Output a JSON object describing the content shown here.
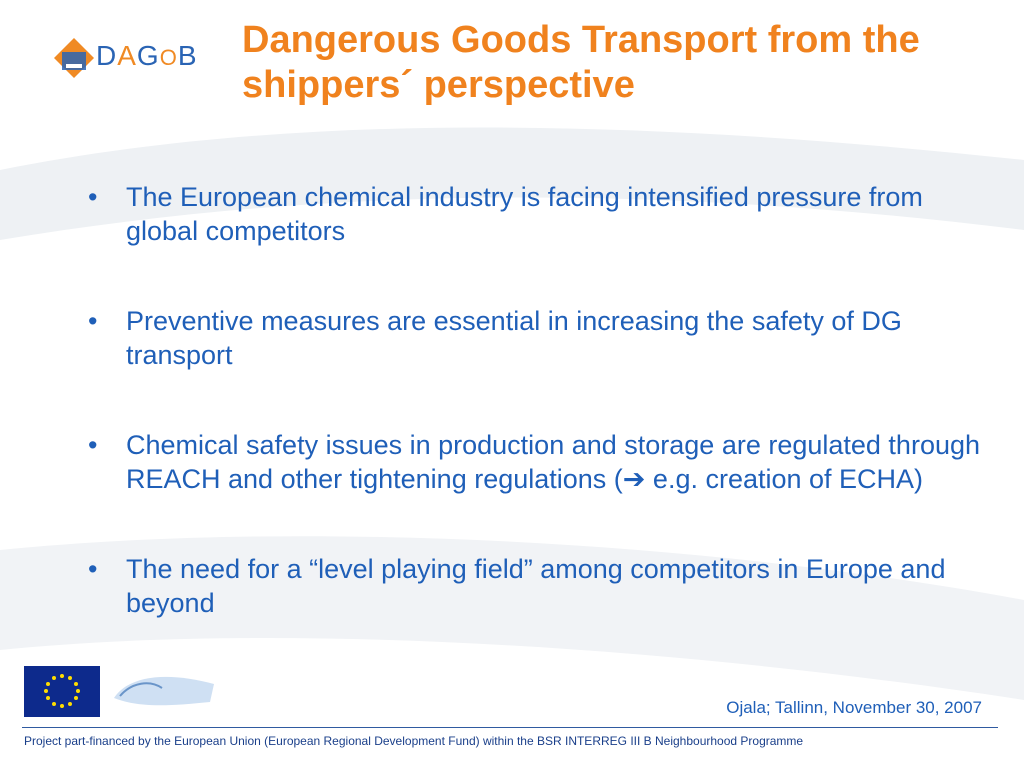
{
  "logo": {
    "text_d": "D",
    "text_a": "A",
    "text_g": "G",
    "text_o": "O",
    "text_b": "B"
  },
  "title": "Dangerous Goods Transport from the shippers´ perspective",
  "bullets": [
    {
      "marker": "•",
      "text": "The European chemical industry is facing intensified pressure from global competitors"
    },
    {
      "marker": "•",
      "text": "Preventive measures are essential in increasing the safety of DG transport"
    },
    {
      "marker": "•",
      "text_before": "Chemical safety issues in production and storage are regulated through REACH and other tightening regulations (",
      "arrow": "➔",
      "text_after": " e.g. creation of ECHA)"
    },
    {
      "marker": "•",
      "text": "The need for a “level playing field” among competitors in Europe and beyond"
    }
  ],
  "credit": "Ojala; Tallinn, November 30, 2007",
  "footer": "Project part-financed by the European Union (European Regional Development Fund) within the BSR INTERREG III B Neighbourhood Programme",
  "colors": {
    "title": "#f0821e",
    "body": "#1f5fb8",
    "eu_flag": "#0d2a8c"
  }
}
